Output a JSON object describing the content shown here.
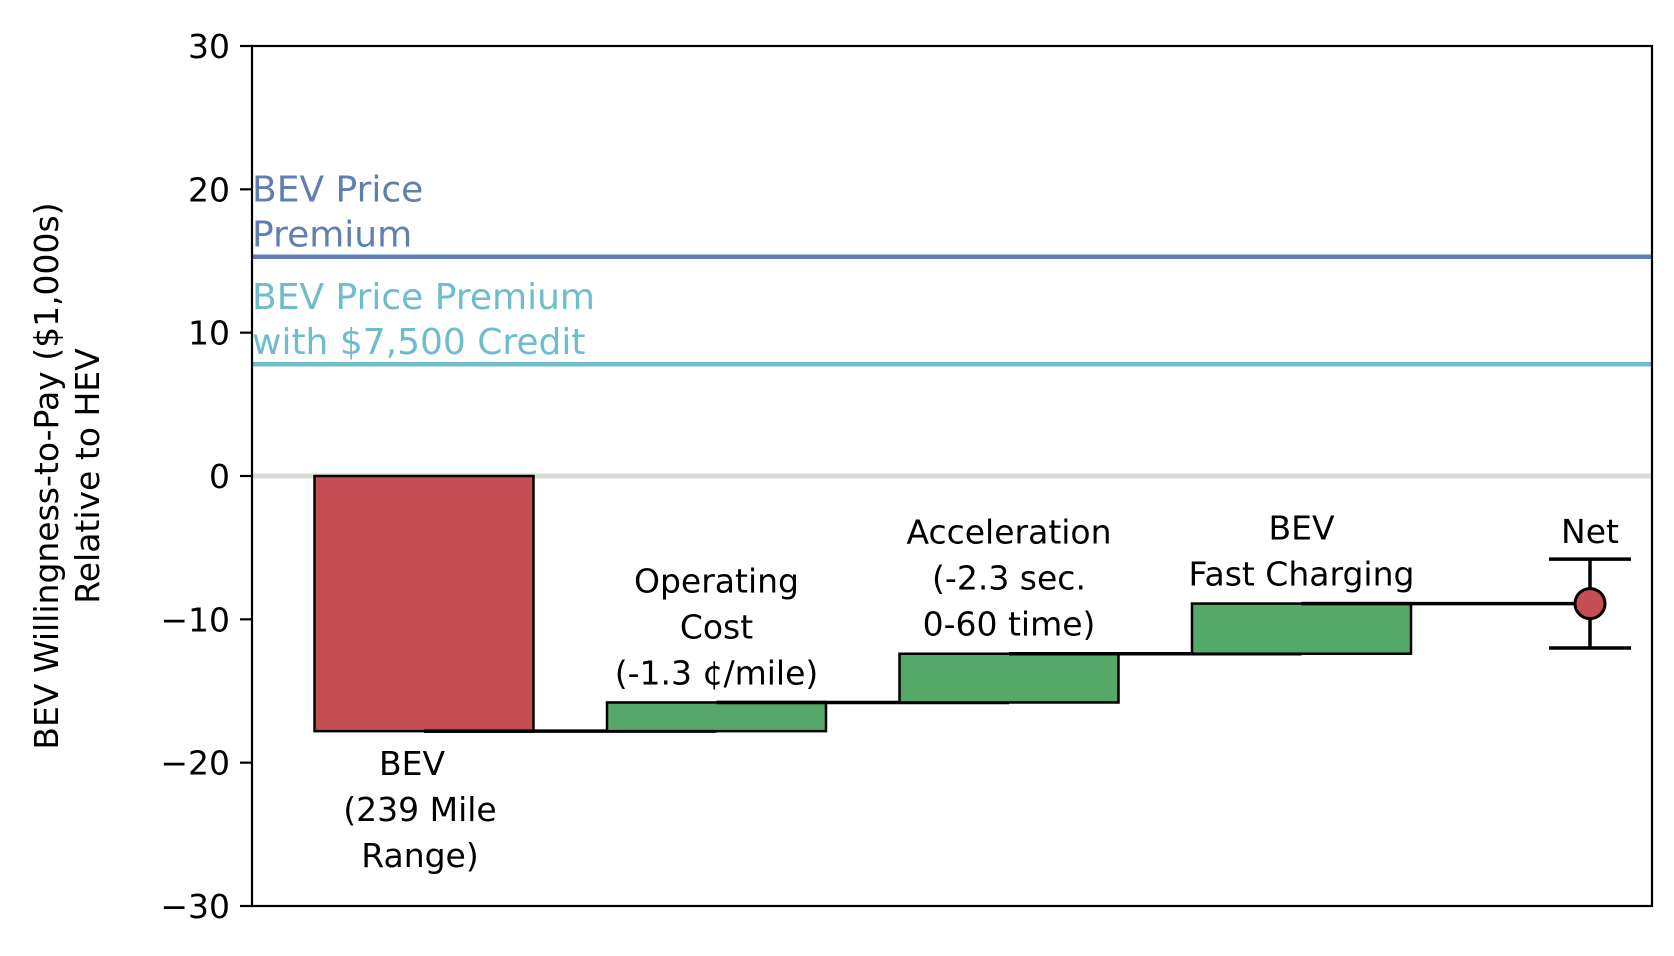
{
  "chart_data": {
    "type": "waterfall",
    "ylabel": [
      "BEV Willingness-to-Pay ($1,000s)",
      "Relative to HEV"
    ],
    "ylim": [
      -30,
      30
    ],
    "yticks": [
      "30",
      "20",
      "10",
      "0",
      "−10",
      "−20",
      "−30"
    ],
    "ytick_values": [
      30,
      20,
      10,
      0,
      -10,
      -20,
      -30
    ],
    "zero_line": true,
    "reference_lines": [
      {
        "label_lines": [
          "BEV Price",
          "Premium"
        ],
        "value": 15.3,
        "color": "#5f7fb3"
      },
      {
        "label_lines": [
          "BEV Price Premium",
          "with $7,500 Credit"
        ],
        "value": 7.8,
        "color": "#6fbccd"
      }
    ],
    "steps": [
      {
        "label_lines": [
          "BEV",
          "(239 Mile",
          "Range)"
        ],
        "start": 0,
        "end": -17.8,
        "color": "#c44e52"
      },
      {
        "label_lines": [
          "Operating",
          "Cost",
          "(-1.3 ¢/mile)"
        ],
        "start": -17.8,
        "end": -15.8,
        "color": "#55a868"
      },
      {
        "label_lines": [
          "Acceleration",
          "(-2.3 sec.",
          "0-60 time)"
        ],
        "start": -15.8,
        "end": -12.4,
        "color": "#55a868"
      },
      {
        "label_lines": [
          "BEV",
          "Fast Charging"
        ],
        "start": -12.4,
        "end": -8.9,
        "color": "#55a868"
      }
    ],
    "net": {
      "label": "Net",
      "value": -8.9,
      "ci_low": -12.0,
      "ci_high": -5.8,
      "color": "#c44e52"
    }
  }
}
